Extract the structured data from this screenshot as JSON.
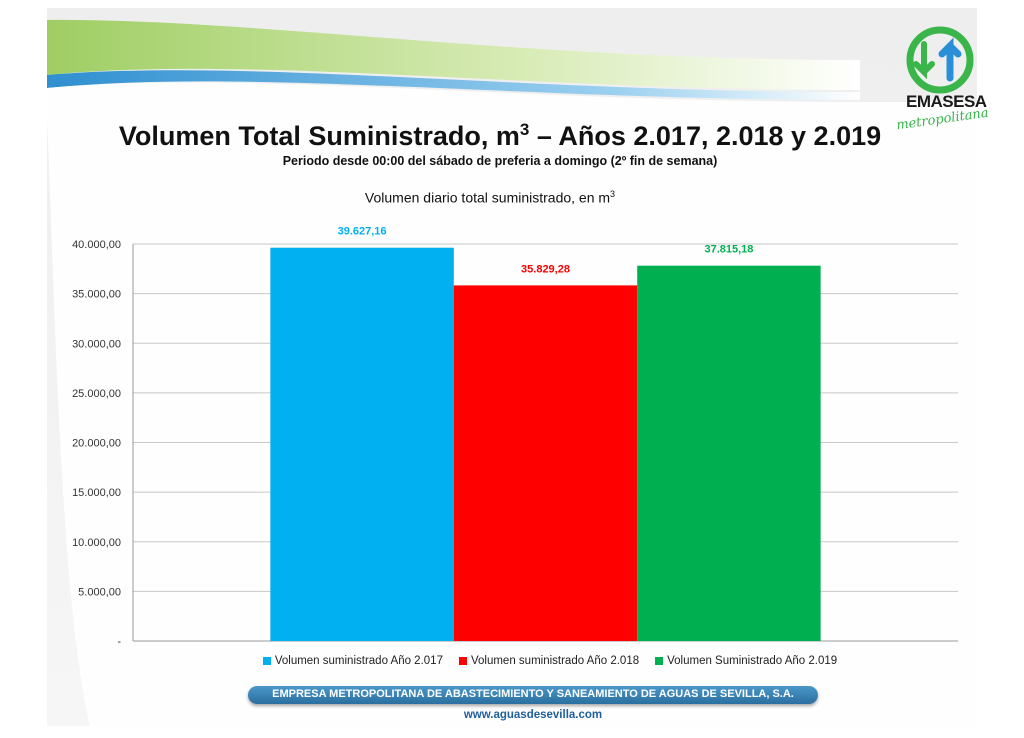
{
  "title_main": "Volumen Total Suministrado, m",
  "title_sup": "3",
  "title_rest": " – Años 2.017, 2.018 y 2.019",
  "subtitle": "Periodo desde 00:00 del sábado de preferia a domingo (2º fin de semana)",
  "brand": {
    "name": "EMASESA",
    "tagline": "metropolitana",
    "green": "#39b54a",
    "blue": "#2a8fd6"
  },
  "footer": {
    "company": "EMPRESA METROPOLITANA DE ABASTECIMIENTO Y SANEAMIENTO DE AGUAS DE SEVILLA, S.A.",
    "url": "www.aguasdesevilla.com"
  },
  "chart_data": {
    "type": "bar",
    "title_main": "Volumen diario total suministrado, en m",
    "title_sup": "3",
    "categories": [
      ""
    ],
    "series": [
      {
        "name": "Volumen suministrado Año 2.017",
        "values": [
          39627.16
        ],
        "label": "39.627,16",
        "color": "#00b0f0"
      },
      {
        "name": "Volumen suministrado Año 2.018",
        "values": [
          35829.28
        ],
        "label": "35.829,28",
        "color": "#ff0000"
      },
      {
        "name": "Volumen Suministrado Año 2.019",
        "values": [
          37815.18
        ],
        "label": "37.815,18",
        "color": "#00b050"
      }
    ],
    "ylim": [
      0,
      40000
    ],
    "yticks": [
      {
        "value": 0,
        "label": "-"
      },
      {
        "value": 5000,
        "label": "5.000,00"
      },
      {
        "value": 10000,
        "label": "10.000,00"
      },
      {
        "value": 15000,
        "label": "15.000,00"
      },
      {
        "value": 20000,
        "label": "20.000,00"
      },
      {
        "value": 25000,
        "label": "25.000,00"
      },
      {
        "value": 30000,
        "label": "30.000,00"
      },
      {
        "value": 35000,
        "label": "35.000,00"
      },
      {
        "value": 40000,
        "label": "40.000,00"
      }
    ],
    "grid": true,
    "legend_position": "bottom"
  }
}
